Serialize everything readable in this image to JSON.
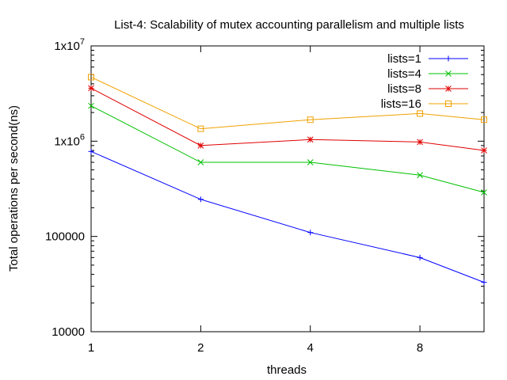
{
  "chart_data": {
    "type": "line",
    "title": "List-4: Scalability of mutex accounting parallelism and multiple lists",
    "xlabel": "threads",
    "ylabel": "Total operations per second(ns)",
    "x_scale": "log2",
    "y_scale": "log10",
    "xlim": [
      1,
      12
    ],
    "ylim": [
      10000,
      10000000
    ],
    "x_ticks": [
      {
        "value": 1,
        "label": "1"
      },
      {
        "value": 2,
        "label": "2"
      },
      {
        "value": 4,
        "label": "4"
      },
      {
        "value": 8,
        "label": "8"
      }
    ],
    "y_ticks": [
      {
        "value": 10000,
        "label": "10000"
      },
      {
        "value": 100000,
        "label": "100000"
      },
      {
        "value": 1000000,
        "label": "1x10",
        "exp": "6"
      },
      {
        "value": 10000000,
        "label": "1x10",
        "exp": "7"
      }
    ],
    "grid": false,
    "legend_position": "top-right",
    "x": [
      1,
      2,
      4,
      8,
      12
    ],
    "series": [
      {
        "name": "lists=1",
        "color": "#0000ff",
        "marker": "plus",
        "values": [
          780000,
          245000,
          110000,
          60000,
          33000
        ]
      },
      {
        "name": "lists=4",
        "color": "#00c000",
        "marker": "cross",
        "values": [
          2350000,
          600000,
          600000,
          440000,
          290000
        ]
      },
      {
        "name": "lists=8",
        "color": "#e00000",
        "marker": "star",
        "values": [
          3600000,
          900000,
          1040000,
          980000,
          800000
        ]
      },
      {
        "name": "lists=16",
        "color": "#f0a000",
        "marker": "square",
        "values": [
          4700000,
          1350000,
          1680000,
          1950000,
          1680000
        ]
      }
    ]
  }
}
